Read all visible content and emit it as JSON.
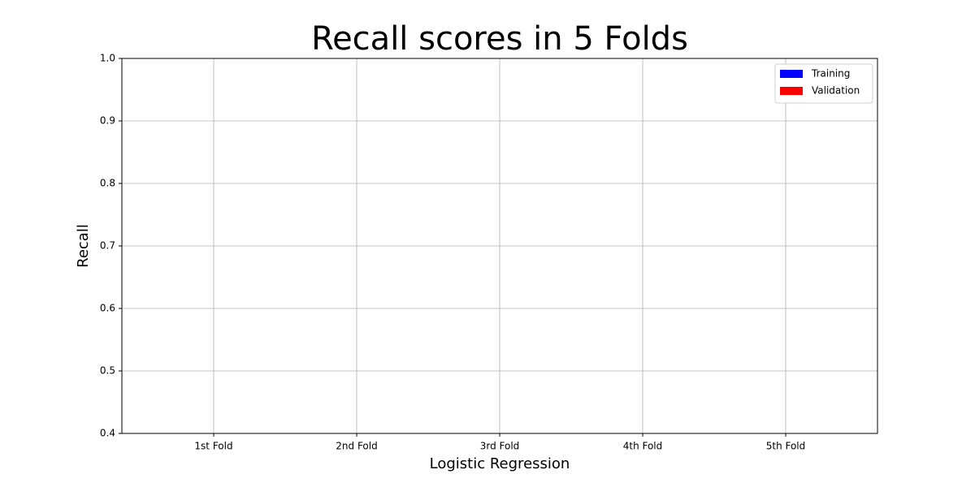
{
  "chart_data": {
    "type": "bar",
    "title": "Recall scores in 5 Folds",
    "xlabel": "Logistic Regression",
    "ylabel": "Recall",
    "categories": [
      "1st Fold",
      "2nd Fold",
      "3rd Fold",
      "4th Fold",
      "5th Fold"
    ],
    "series": [
      {
        "name": "Training",
        "color": "#0000ff",
        "values": [
          null,
          null,
          null,
          null,
          null
        ]
      },
      {
        "name": "Validation",
        "color": "#ff0000",
        "values": [
          null,
          null,
          null,
          null,
          null
        ]
      }
    ],
    "ylim": [
      0.4,
      1.0
    ],
    "yticks": [
      0.4,
      0.5,
      0.6,
      0.7,
      0.8,
      0.9,
      {
        "value": 1.0,
        "label": "1.0"
      }
    ],
    "grid": true,
    "legend": "upper right"
  }
}
